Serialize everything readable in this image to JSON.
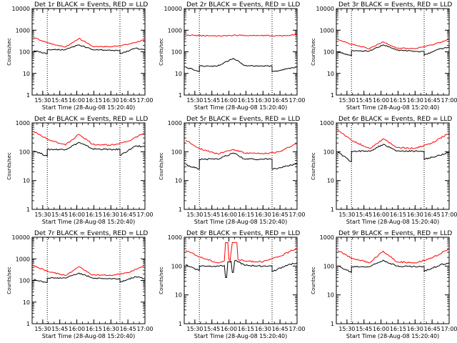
{
  "chart_data": [
    {
      "type": "line",
      "title": "Det 1r BLACK = Events, RED = LLD",
      "xlabel": "Start Time (28-Aug-08 15:20:40)",
      "ylabel": "Counts/sec",
      "xticks": [
        "15:30",
        "15:45",
        "16:00",
        "16:15",
        "16:30",
        "16:45",
        "17:00"
      ],
      "yticks": [
        "1",
        "10",
        "100",
        "1000",
        "10000"
      ],
      "yscale": "log",
      "ylim": [
        1,
        10000
      ],
      "xlim": [
        "15:20:40",
        "17:00:00"
      ],
      "markers": [
        "15:34",
        "16:38"
      ],
      "series": [
        {
          "color": "#000000",
          "x": [
            "15:22",
            "15:34",
            "15:34",
            "15:50",
            "16:02",
            "16:14",
            "16:30",
            "16:38",
            "16:38",
            "16:52",
            "17:00"
          ],
          "y": [
            115,
            80,
            125,
            125,
            210,
            125,
            115,
            115,
            80,
            150,
            120
          ]
        },
        {
          "color": "#ff0000",
          "x": [
            "15:22",
            "15:34",
            "15:50",
            "16:02",
            "16:14",
            "16:30",
            "16:45",
            "17:00"
          ],
          "y": [
            450,
            260,
            165,
            420,
            180,
            170,
            220,
            360
          ]
        }
      ]
    },
    {
      "type": "line",
      "title": "Det 2r BLACK = Events, RED = LLD",
      "xlabel": "Start Time (28-Aug-08 15:20:40)",
      "ylabel": "Counts/sec",
      "xticks": [
        "15:30",
        "15:45",
        "16:00",
        "16:15",
        "16:30",
        "16:45",
        "17:00"
      ],
      "yticks": [
        "1",
        "10",
        "100",
        "1000",
        "10000"
      ],
      "yscale": "log",
      "ylim": [
        1,
        10000
      ],
      "xlim": [
        "15:20:40",
        "17:00:00"
      ],
      "markers": [
        "15:34",
        "16:38"
      ],
      "series": [
        {
          "color": "#000000",
          "x": [
            "15:22",
            "15:34",
            "15:34",
            "15:50",
            "16:04",
            "16:14",
            "16:30",
            "16:38",
            "16:38",
            "16:50",
            "17:00"
          ],
          "y": [
            20,
            12,
            22,
            22,
            50,
            23,
            22,
            22,
            12,
            16,
            20
          ]
        },
        {
          "color": "#ff0000",
          "x": [
            "15:22",
            "15:34",
            "15:50",
            "16:04",
            "16:20",
            "16:38",
            "16:50",
            "17:00"
          ],
          "y": [
            600,
            560,
            540,
            580,
            570,
            560,
            560,
            640
          ]
        }
      ]
    },
    {
      "type": "line",
      "title": "Det 3r BLACK = Events, RED = LLD",
      "xlabel": "Start Time (28-Aug-08 15:20:40)",
      "ylabel": "Counts/sec",
      "xticks": [
        "15:30",
        "15:45",
        "16:00",
        "16:15",
        "16:30",
        "16:45",
        "17:00"
      ],
      "yticks": [
        "1",
        "10",
        "100",
        "1000",
        "10000"
      ],
      "yscale": "log",
      "ylim": [
        1,
        10000
      ],
      "xlim": [
        "15:20:40",
        "17:00:00"
      ],
      "markers": [
        "15:34",
        "16:38"
      ],
      "series": [
        {
          "color": "#000000",
          "x": [
            "15:22",
            "15:34",
            "15:34",
            "15:50",
            "16:02",
            "16:14",
            "16:30",
            "16:38",
            "16:38",
            "16:52",
            "17:00"
          ],
          "y": [
            100,
            65,
            110,
            110,
            210,
            120,
            105,
            105,
            70,
            140,
            160
          ]
        },
        {
          "color": "#ff0000",
          "x": [
            "15:22",
            "15:34",
            "15:50",
            "16:02",
            "16:14",
            "16:30",
            "16:45",
            "17:00"
          ],
          "y": [
            380,
            220,
            140,
            290,
            150,
            140,
            210,
            380
          ]
        }
      ]
    },
    {
      "type": "line",
      "title": "Det 4r BLACK = Events, RED = LLD",
      "xlabel": "Start Time (28-Aug-08 15:20:40)",
      "ylabel": "Counts/sec",
      "xticks": [
        "15:30",
        "15:45",
        "16:00",
        "16:15",
        "16:30",
        "16:45",
        "17:00"
      ],
      "yticks": [
        "1",
        "10",
        "100",
        "1000"
      ],
      "yscale": "log",
      "ylim": [
        1,
        1000
      ],
      "xlim": [
        "15:20:40",
        "17:00:00"
      ],
      "markers": [
        "15:34",
        "16:38"
      ],
      "series": [
        {
          "color": "#000000",
          "x": [
            "15:22",
            "15:34",
            "15:34",
            "15:50",
            "16:02",
            "16:14",
            "16:30",
            "16:38",
            "16:38",
            "16:52",
            "17:00"
          ],
          "y": [
            110,
            70,
            120,
            120,
            210,
            125,
            120,
            120,
            75,
            160,
            150
          ]
        },
        {
          "color": "#ff0000",
          "x": [
            "15:22",
            "15:34",
            "15:50",
            "16:02",
            "16:14",
            "16:30",
            "16:45",
            "17:00"
          ],
          "y": [
            500,
            280,
            170,
            400,
            180,
            170,
            230,
            450
          ]
        }
      ]
    },
    {
      "type": "line",
      "title": "Det 5r BLACK = Events, RED = LLD",
      "xlabel": "Start Time (28-Aug-08 15:20:40)",
      "ylabel": "Counts/sec",
      "xticks": [
        "15:30",
        "15:45",
        "16:00",
        "16:15",
        "16:30",
        "16:45",
        "17:00"
      ],
      "yticks": [
        "1",
        "10",
        "100",
        "1000"
      ],
      "yscale": "log",
      "ylim": [
        1,
        1000
      ],
      "xlim": [
        "15:20:40",
        "17:00:00"
      ],
      "markers": [
        "15:34",
        "16:38"
      ],
      "series": [
        {
          "color": "#000000",
          "x": [
            "15:22",
            "15:34",
            "15:34",
            "15:50",
            "16:04",
            "16:14",
            "16:30",
            "16:38",
            "16:38",
            "16:52",
            "17:00"
          ],
          "y": [
            35,
            25,
            55,
            55,
            90,
            55,
            55,
            55,
            25,
            32,
            38
          ]
        },
        {
          "color": "#ff0000",
          "x": [
            "15:22",
            "15:34",
            "15:50",
            "16:04",
            "16:14",
            "16:30",
            "16:45",
            "17:00"
          ],
          "y": [
            250,
            130,
            85,
            120,
            90,
            85,
            100,
            200
          ]
        }
      ]
    },
    {
      "type": "line",
      "title": "Det 6r BLACK = Events, RED = LLD",
      "xlabel": "Start Time (28-Aug-08 15:20:40)",
      "ylabel": "Counts/sec",
      "xticks": [
        "15:30",
        "15:45",
        "16:00",
        "16:15",
        "16:30",
        "16:45",
        "17:00"
      ],
      "yticks": [
        "1",
        "10",
        "100",
        "1000"
      ],
      "yscale": "log",
      "ylim": [
        1,
        1000
      ],
      "xlim": [
        "15:20:40",
        "17:00:00"
      ],
      "markers": [
        "15:34",
        "16:38"
      ],
      "series": [
        {
          "color": "#000000",
          "x": [
            "15:22",
            "15:34",
            "15:34",
            "15:50",
            "16:02",
            "16:14",
            "16:30",
            "16:38",
            "16:38",
            "16:52",
            "17:00"
          ],
          "y": [
            95,
            45,
            105,
            105,
            180,
            105,
            105,
            105,
            55,
            75,
            95
          ]
        },
        {
          "color": "#ff0000",
          "x": [
            "15:22",
            "15:34",
            "15:50",
            "16:02",
            "16:14",
            "16:30",
            "16:45",
            "17:00"
          ],
          "y": [
            580,
            250,
            130,
            280,
            140,
            130,
            200,
            450
          ]
        }
      ]
    },
    {
      "type": "line",
      "title": "Det 7r BLACK = Events, RED = LLD",
      "xlabel": "Start Time (28-Aug-08 15:20:40)",
      "ylabel": "Counts/sec",
      "xticks": [
        "15:30",
        "15:45",
        "16:00",
        "16:15",
        "16:30",
        "16:45",
        "17:00"
      ],
      "yticks": [
        "1",
        "10",
        "100",
        "1000",
        "10000"
      ],
      "yscale": "log",
      "ylim": [
        1,
        10000
      ],
      "xlim": [
        "15:20:40",
        "17:00:00"
      ],
      "markers": [
        "15:34",
        "16:38"
      ],
      "series": [
        {
          "color": "#000000",
          "x": [
            "15:22",
            "15:34",
            "15:34",
            "15:50",
            "16:02",
            "16:14",
            "16:30",
            "16:38",
            "16:38",
            "16:52",
            "17:00"
          ],
          "y": [
            110,
            80,
            130,
            130,
            220,
            130,
            120,
            120,
            85,
            150,
            120
          ]
        },
        {
          "color": "#ff0000",
          "x": [
            "15:22",
            "15:34",
            "15:50",
            "16:02",
            "16:14",
            "16:30",
            "16:45",
            "17:00"
          ],
          "y": [
            480,
            270,
            170,
            430,
            180,
            170,
            230,
            500
          ]
        }
      ]
    },
    {
      "type": "line",
      "title": "Det 8r BLACK = Events, RED = LLD",
      "xlabel": "Start Time (28-Aug-08 15:20:40)",
      "ylabel": "Counts/sec",
      "xticks": [
        "15:30",
        "15:45",
        "16:00",
        "16:15",
        "16:30",
        "16:45",
        "17:00"
      ],
      "yticks": [
        "1",
        "10",
        "100",
        "1000"
      ],
      "yscale": "log",
      "ylim": [
        1,
        1000
      ],
      "xlim": [
        "15:20:40",
        "17:00:00"
      ],
      "markers": [
        "15:34",
        "16:38"
      ],
      "series": [
        {
          "color": "#000000",
          "x": [
            "15:22",
            "15:34",
            "15:34",
            "15:50",
            "15:56",
            "15:57",
            "15:58",
            "15:59",
            "16:02",
            "16:03",
            "16:04",
            "16:05",
            "16:07",
            "16:14",
            "16:30",
            "16:38",
            "16:38",
            "16:52",
            "17:00"
          ],
          "y": [
            110,
            70,
            100,
            100,
            105,
            40,
            40,
            140,
            145,
            60,
            60,
            150,
            150,
            105,
            100,
            100,
            65,
            110,
            130
          ]
        },
        {
          "color": "#ff0000",
          "x": [
            "15:22",
            "15:34",
            "15:50",
            "15:56",
            "15:57",
            "15:59",
            "16:00",
            "16:01",
            "16:03",
            "16:04",
            "16:07",
            "16:08",
            "16:14",
            "16:30",
            "16:45",
            "17:00"
          ],
          "y": [
            350,
            210,
            130,
            150,
            650,
            650,
            170,
            150,
            650,
            650,
            650,
            170,
            150,
            140,
            220,
            420
          ]
        }
      ]
    },
    {
      "type": "line",
      "title": "Det 9r BLACK = Events, RED = LLD",
      "xlabel": "Start Time (28-Aug-08 15:20:40)",
      "ylabel": "Counts/sec",
      "xticks": [
        "15:30",
        "15:45",
        "16:00",
        "16:15",
        "16:30",
        "16:45",
        "17:00"
      ],
      "yticks": [
        "1",
        "10",
        "100",
        "1000"
      ],
      "yscale": "log",
      "ylim": [
        1,
        1000
      ],
      "xlim": [
        "15:20:40",
        "17:00:00"
      ],
      "markers": [
        "15:34",
        "16:38"
      ],
      "series": [
        {
          "color": "#000000",
          "x": [
            "15:22",
            "15:34",
            "15:34",
            "15:50",
            "16:02",
            "16:14",
            "16:30",
            "16:38",
            "16:38",
            "16:52",
            "17:00"
          ],
          "y": [
            100,
            60,
            95,
            95,
            160,
            100,
            95,
            95,
            65,
            110,
            130
          ]
        },
        {
          "color": "#ff0000",
          "x": [
            "15:22",
            "15:34",
            "15:50",
            "16:02",
            "16:14",
            "16:30",
            "16:45",
            "17:00"
          ],
          "y": [
            350,
            190,
            130,
            330,
            140,
            130,
            190,
            400
          ]
        }
      ]
    }
  ]
}
